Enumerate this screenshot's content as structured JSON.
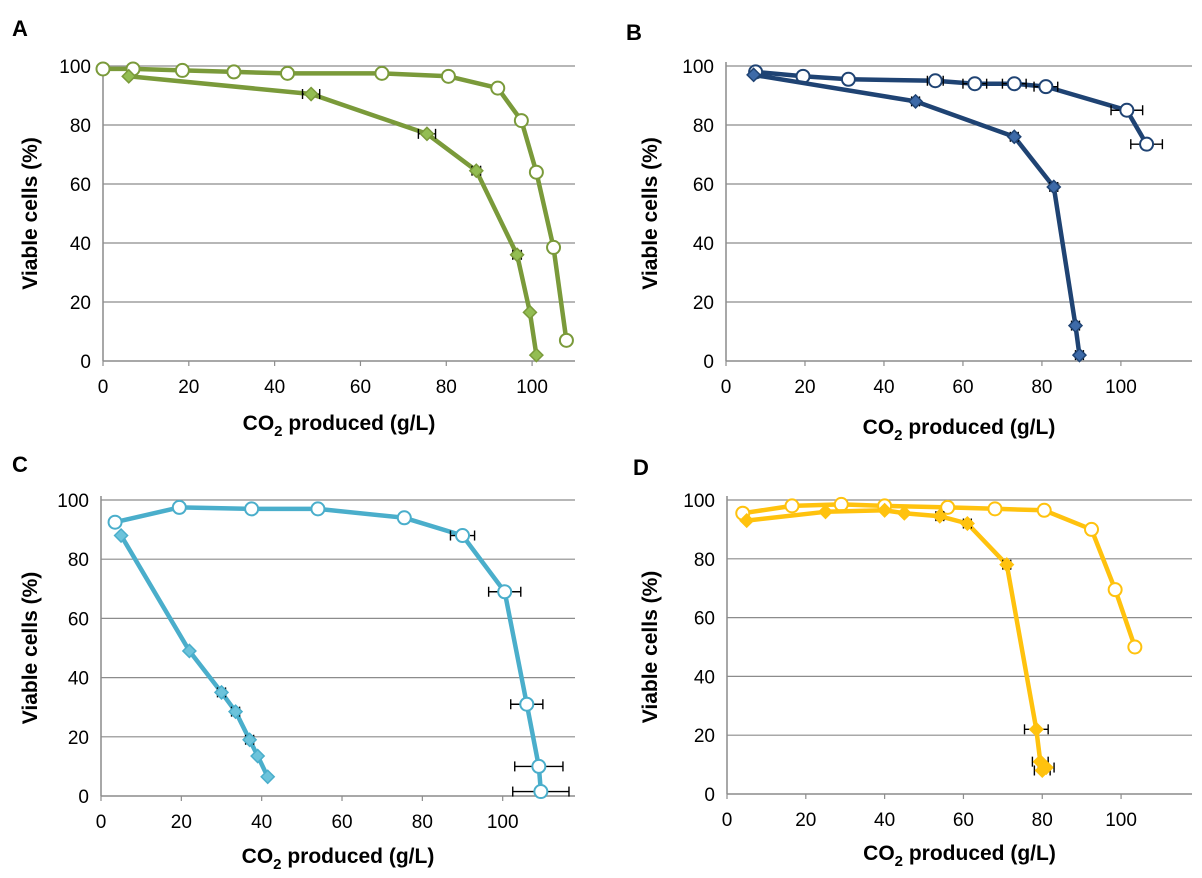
{
  "panels": [
    {
      "letter": "A",
      "xlabel_prefix": "CO",
      "xlabel_sub": "2",
      "xlabel_suffix": " produced (g/L)",
      "ylabel": "Viable cells (%)",
      "color": "#7a9a3a",
      "diamond_fill": "#93bd52",
      "xticks": [
        "0",
        "20",
        "40",
        "60",
        "80",
        "100"
      ],
      "yticks": [
        "0",
        "20",
        "40",
        "60",
        "80",
        "100"
      ],
      "chart_data": {
        "type": "line",
        "xlim": [
          0,
          110
        ],
        "ylim": [
          0,
          100
        ],
        "grid": "horizontal",
        "series": [
          {
            "marker": "circle-open",
            "x": [
              0,
              7,
              18.5,
              30.5,
              43,
              65,
              80.5,
              92,
              97.5,
              101,
              105,
              108
            ],
            "y": [
              99,
              99,
              98.5,
              98,
              97.5,
              97.5,
              96.5,
              92.5,
              81.5,
              64,
              38.5,
              7
            ],
            "xerr": [
              0,
              0,
              0,
              0,
              0,
              0,
              0,
              0,
              1,
              1,
              1,
              1
            ]
          },
          {
            "marker": "diamond-filled",
            "x": [
              6,
              48.5,
              75.5,
              87,
              96.5,
              99.5,
              101
            ],
            "y": [
              96.5,
              90.5,
              77,
              64.5,
              36,
              16.5,
              2
            ],
            "xerr": [
              0,
              2,
              2,
              1,
              1,
              0,
              0
            ]
          }
        ]
      }
    },
    {
      "letter": "B",
      "xlabel_prefix": "CO",
      "xlabel_sub": "2",
      "xlabel_suffix": " produced (g/L)",
      "ylabel": "Viable cells (%)",
      "color": "#1f4373",
      "diamond_fill": "#3d6aa8",
      "xticks": [
        "0",
        "20",
        "40",
        "60",
        "80",
        "100"
      ],
      "yticks": [
        "0",
        "20",
        "40",
        "60",
        "80",
        "100"
      ],
      "chart_data": {
        "type": "line",
        "xlim": [
          0,
          118
        ],
        "ylim": [
          0,
          100
        ],
        "grid": "horizontal",
        "series": [
          {
            "marker": "circle-open",
            "x": [
              7.5,
              19.5,
              31,
              53,
              63,
              73,
              81,
              101.5,
              106.5
            ],
            "y": [
              98,
              96.5,
              95.5,
              95,
              94,
              94,
              93,
              85,
              73.5
            ],
            "xerr": [
              0,
              0,
              0,
              2,
              3,
              3,
              3,
              4,
              4
            ]
          },
          {
            "marker": "diamond-filled",
            "x": [
              7,
              48,
              73,
              83,
              88.5,
              89.5
            ],
            "y": [
              97,
              88,
              76,
              59,
              12,
              2
            ],
            "xerr": [
              0,
              1,
              1,
              1,
              1,
              1
            ]
          }
        ]
      }
    },
    {
      "letter": "C",
      "xlabel_prefix": "CO",
      "xlabel_sub": "2",
      "xlabel_suffix": " produced (g/L)",
      "ylabel": "Viable cells (%)",
      "color": "#4aaecb",
      "diamond_fill": "#6cc3db",
      "xticks": [
        "0",
        "20",
        "40",
        "60",
        "80",
        "100"
      ],
      "yticks": [
        "0",
        "20",
        "40",
        "60",
        "80",
        "100"
      ],
      "chart_data": {
        "type": "line",
        "xlim": [
          0,
          118
        ],
        "ylim": [
          0,
          100
        ],
        "grid": "horizontal",
        "series": [
          {
            "marker": "circle-open",
            "x": [
              3.5,
              19.5,
              37.5,
              54,
              75.5,
              90,
              100.5,
              106,
              109,
              109.5
            ],
            "y": [
              92.5,
              97.5,
              97,
              97,
              94,
              88,
              69,
              31,
              10,
              1.5
            ],
            "xerr": [
              0,
              0,
              0,
              0,
              1,
              3,
              4,
              4,
              6,
              7
            ]
          },
          {
            "marker": "diamond-filled",
            "x": [
              5,
              22,
              30,
              33.5,
              37,
              39,
              41.5
            ],
            "y": [
              88,
              49,
              35,
              28.5,
              19,
              13.5,
              6.5
            ],
            "xerr": [
              0,
              0,
              1,
              1,
              1,
              0,
              0
            ]
          }
        ]
      }
    },
    {
      "letter": "D",
      "xlabel_prefix": "CO",
      "xlabel_sub": "2",
      "xlabel_suffix": " produced (g/L)",
      "ylabel": "Viable cells (%)",
      "color": "#ffc20e",
      "diamond_fill": "#ffc20e",
      "xticks": [
        "0",
        "20",
        "40",
        "60",
        "80",
        "100"
      ],
      "yticks": [
        "0",
        "20",
        "40",
        "60",
        "80",
        "100"
      ],
      "chart_data": {
        "type": "line",
        "xlim": [
          0,
          118
        ],
        "ylim": [
          0,
          100
        ],
        "grid": "horizontal",
        "series": [
          {
            "marker": "circle-open",
            "x": [
              4,
              16.5,
              29,
              40,
              56,
              68,
              80.5,
              92.5,
              98.5,
              103.5
            ],
            "y": [
              95.5,
              98,
              98.5,
              98,
              97.5,
              97,
              96.5,
              90,
              69.5,
              50
            ],
            "xerr": [
              0,
              0,
              0,
              0,
              0,
              0,
              0,
              1,
              0,
              0
            ]
          },
          {
            "marker": "diamond-filled",
            "x": [
              5,
              25,
              40,
              45,
              54,
              61,
              71,
              78.5,
              79.5,
              80,
              81
            ],
            "y": [
              93,
              96,
              96.5,
              95.5,
              94.5,
              92,
              78,
              22,
              11,
              8,
              9
            ],
            "xerr": [
              0,
              0,
              0,
              0,
              1,
              1,
              1,
              3,
              2,
              2,
              2
            ]
          }
        ]
      }
    }
  ]
}
